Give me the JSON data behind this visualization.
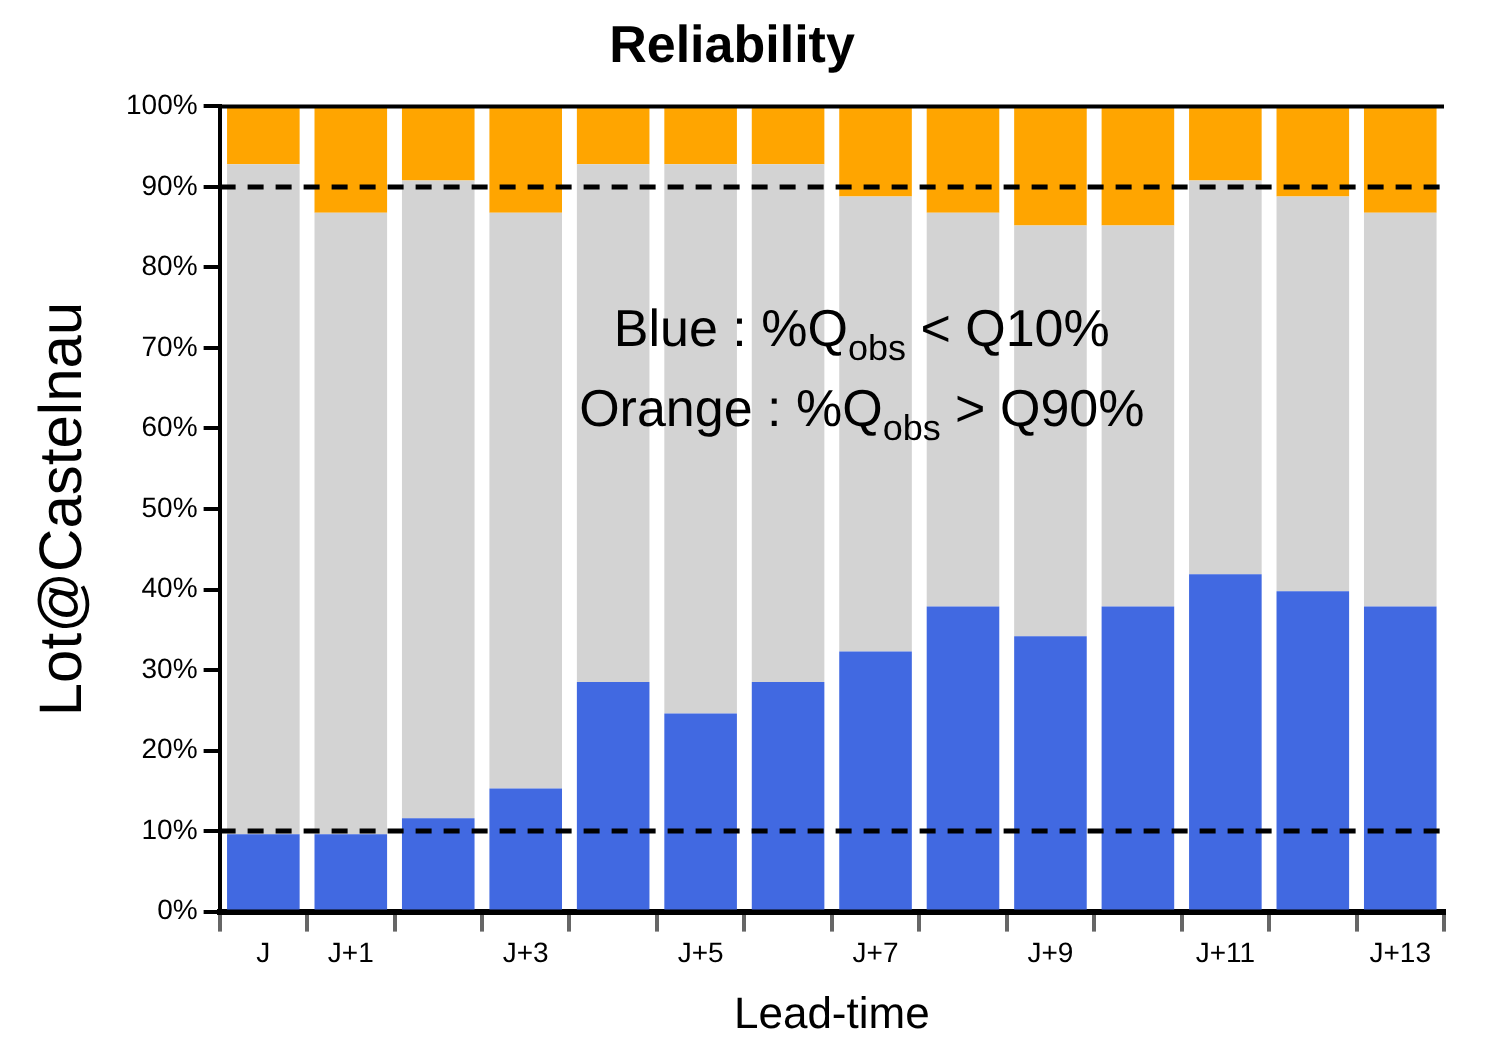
{
  "chart_data": {
    "type": "bar",
    "stacked": true,
    "title": "Reliability",
    "xlabel": "Lead-time",
    "ylabel": "Lot@Castelnau",
    "categories": [
      "J",
      "J+1",
      null,
      "J+3",
      null,
      "J+5",
      null,
      "J+7",
      null,
      "J+9",
      null,
      "J+11",
      null,
      "J+13"
    ],
    "series": [
      {
        "color": "#4169e1",
        "values": [
          9.6,
          9.6,
          11.6,
          15.3,
          28.5,
          24.6,
          28.5,
          32.3,
          37.9,
          34.2,
          37.9,
          41.9,
          39.8,
          37.9
        ]
      },
      {
        "color": "#d3d3d3",
        "values": [
          83.2,
          77.2,
          79.2,
          71.5,
          64.3,
          68.2,
          64.3,
          56.5,
          48.9,
          51.0,
          47.3,
          48.9,
          49.0,
          48.9
        ]
      },
      {
        "color": "#ffa500",
        "values": [
          7.2,
          13.2,
          9.2,
          13.2,
          7.2,
          7.2,
          7.2,
          11.2,
          13.2,
          14.8,
          14.8,
          9.2,
          11.2,
          13.2
        ]
      }
    ],
    "ylim": [
      0,
      100
    ],
    "yticks": [
      {
        "value": 0,
        "label": "0%"
      },
      {
        "value": 10,
        "label": "10%"
      },
      {
        "value": 20,
        "label": "20%"
      },
      {
        "value": 30,
        "label": "30%"
      },
      {
        "value": 40,
        "label": "40%"
      },
      {
        "value": 50,
        "label": "50%"
      },
      {
        "value": 60,
        "label": "60%"
      },
      {
        "value": 70,
        "label": "70%"
      },
      {
        "value": 80,
        "label": "80%"
      },
      {
        "value": 90,
        "label": "90%"
      },
      {
        "value": 100,
        "label": "100%"
      }
    ],
    "ref_lines": [
      {
        "axis": "y",
        "value": 10,
        "line_style": "dashed",
        "color": "#000000"
      },
      {
        "axis": "y",
        "value": 90,
        "line_style": "dashed",
        "color": "#000000"
      }
    ],
    "annotations": [
      "Blue : %Q$_{obs}$ < Q10%",
      "Orange : %Q$_{obs}$ > Q90%"
    ],
    "grid": false,
    "legend": false
  }
}
